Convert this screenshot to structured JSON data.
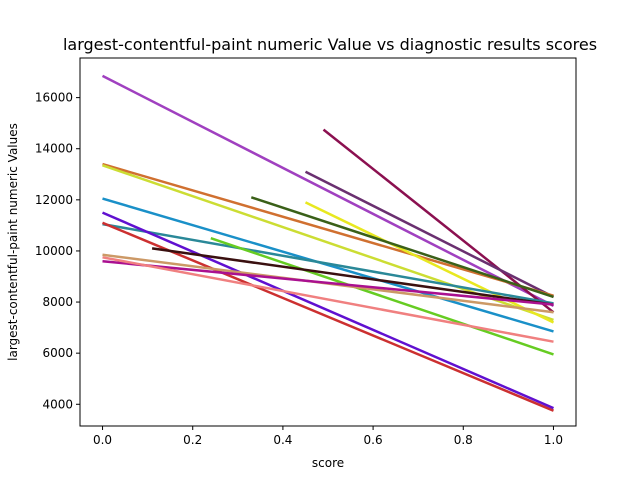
{
  "chart_data": {
    "type": "line",
    "title": "largest-contentful-paint numeric Value vs diagnostic results scores",
    "xlabel": "score",
    "ylabel": "largest-contentful-paint numeric Values",
    "xlim": [
      -0.05,
      1.05
    ],
    "ylim": [
      3150,
      17550
    ],
    "xticks": [
      0.0,
      0.2,
      0.4,
      0.6,
      0.8,
      1.0
    ],
    "xtick_labels": [
      "0.0",
      "0.2",
      "0.4",
      "0.6",
      "0.8",
      "1.0"
    ],
    "yticks": [
      4000,
      6000,
      8000,
      10000,
      12000,
      14000,
      16000
    ],
    "ytick_labels": [
      "4000",
      "6000",
      "8000",
      "10000",
      "12000",
      "14000",
      "16000"
    ],
    "grid": false,
    "legend": "none",
    "series": [
      {
        "color": "#a040c0",
        "x": [
          0.0,
          1.0
        ],
        "y": [
          16850,
          7850
        ]
      },
      {
        "color": "#8b1050",
        "x": [
          0.49,
          1.0
        ],
        "y": [
          14750,
          7600
        ]
      },
      {
        "color": "#6a3070",
        "x": [
          0.45,
          1.0
        ],
        "y": [
          13100,
          8200
        ]
      },
      {
        "color": "#d07030",
        "x": [
          0.0,
          1.0
        ],
        "y": [
          13400,
          8250
        ]
      },
      {
        "color": "#ccdd33",
        "x": [
          0.0,
          1.0
        ],
        "y": [
          13350,
          7300
        ]
      },
      {
        "color": "#e8e820",
        "x": [
          0.45,
          1.0
        ],
        "y": [
          11900,
          7200
        ]
      },
      {
        "color": "#3a6018",
        "x": [
          0.33,
          1.0
        ],
        "y": [
          12100,
          8200
        ]
      },
      {
        "color": "#1a90c8",
        "x": [
          0.0,
          1.0
        ],
        "y": [
          12050,
          6850
        ]
      },
      {
        "color": "#2a8898",
        "x": [
          0.0,
          1.0
        ],
        "y": [
          11050,
          7950
        ]
      },
      {
        "color": "#cc3030",
        "x": [
          0.0,
          1.0
        ],
        "y": [
          11100,
          3750
        ]
      },
      {
        "color": "#6010d0",
        "x": [
          0.0,
          1.0
        ],
        "y": [
          11500,
          3850
        ]
      },
      {
        "color": "#66cc22",
        "x": [
          0.24,
          1.0
        ],
        "y": [
          10500,
          5950
        ]
      },
      {
        "color": "#3a1010",
        "x": [
          0.11,
          1.0
        ],
        "y": [
          10100,
          7900
        ]
      },
      {
        "color": "#cc9966",
        "x": [
          0.0,
          1.0
        ],
        "y": [
          9850,
          7600
        ]
      },
      {
        "color": "#aa1090",
        "x": [
          0.0,
          1.0
        ],
        "y": [
          9600,
          7900
        ]
      },
      {
        "color": "#f08080",
        "x": [
          0.0,
          1.0
        ],
        "y": [
          9750,
          6450
        ]
      }
    ]
  }
}
